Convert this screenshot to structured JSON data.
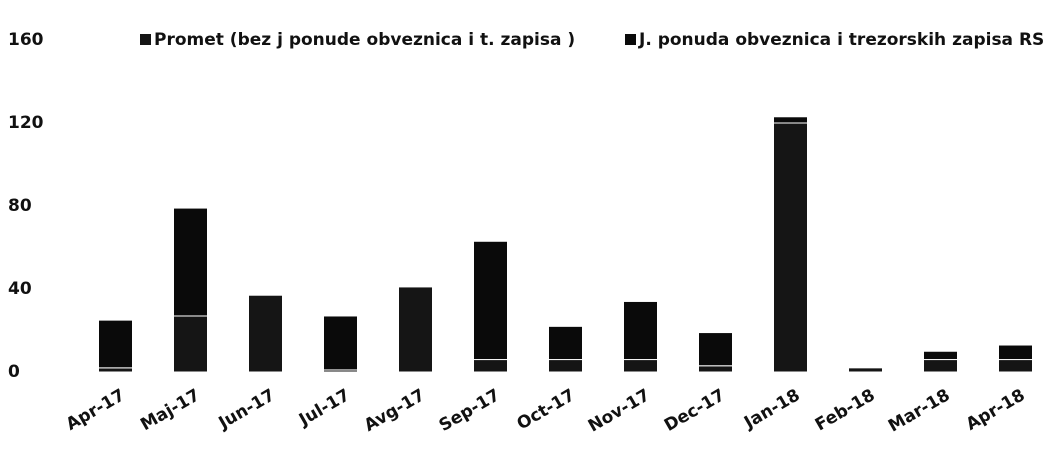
{
  "chart_data": {
    "type": "stacked_bar",
    "categories": [
      "Apr-17",
      "Maj-17",
      "Jun-17",
      "Jul-17",
      "Avg-17",
      "Sep-17",
      "Oct-17",
      "Nov-17",
      "Dec-17",
      "Jan-18",
      "Feb-18",
      "Mar-18",
      "Apr-18"
    ],
    "series": [
      {
        "name": "Promet (bez j ponude obveznica i t. zapisa )",
        "color": "#151515",
        "values": [
          2,
          27,
          37,
          1,
          41,
          6,
          6,
          6,
          3,
          120,
          2,
          6,
          6
        ]
      },
      {
        "name": "J. ponuda obveznica i trezorskih zapisa RS",
        "color": "#0a0a0a",
        "values": [
          23,
          52,
          0,
          26,
          0,
          57,
          16,
          28,
          16,
          3,
          0,
          4,
          7
        ]
      }
    ],
    "ylim": [
      0,
      160
    ],
    "yticks": [
      0,
      40,
      80,
      120,
      160
    ],
    "grid": false
  }
}
